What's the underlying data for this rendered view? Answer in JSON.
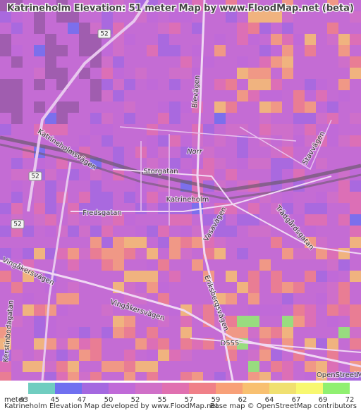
{
  "title": "Katrineholm Elevation: 51 meter Map by www.FloodMap.net (beta)",
  "map": {
    "labels": [
      "52",
      "52",
      "52",
      "Katrineholmsvägen",
      "Blevägen",
      "Norr",
      "Storgatan",
      "Katrineholm",
      "Fredsgatan",
      "Vasavägen",
      "Trädgårdsgatan",
      "Stavvägen",
      "Vingåkersvägen",
      "Vingåkersvägen",
      "Kerstinbodagatan",
      "Eriksbergsvägen",
      "D555",
      "OpenStreetMap"
    ]
  },
  "legend": {
    "unit": "meter",
    "ticks": [
      43,
      45,
      47,
      50,
      52,
      55,
      57,
      59,
      62,
      64,
      67,
      69,
      72
    ],
    "colors": [
      "#70cdc0",
      "#7070f0",
      "#a468e0",
      "#c06ad8",
      "#d070c8",
      "#e070b0",
      "#f08088",
      "#f8a078",
      "#f8c070",
      "#f0e070",
      "#f8f870",
      "#90f070"
    ]
  },
  "footer": {
    "left": "Katrineholm Elevation Map developed by www.FloodMap.net",
    "right": "Base map © OpenStreetMap contributors"
  }
}
